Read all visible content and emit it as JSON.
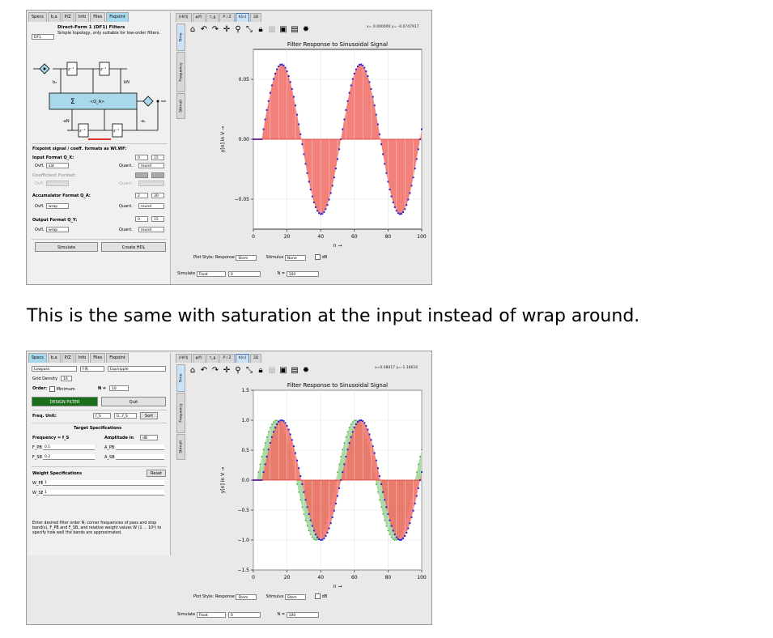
{
  "caption": "This is the same with saturation at the input instead of wrap around.",
  "shot1": {
    "left_tabs": [
      "Specs",
      "b,a",
      "P/Z",
      "Info",
      "Files",
      "Fixpoint"
    ],
    "active_left_tab": "Fixpoint",
    "filter_select": "DF1",
    "filter_title": "Direct-Form 1 (DF1) Filters",
    "filter_subtitle": "Simple topology, only suitable for low-order filters.",
    "diagram": {
      "sum_label": "Σ",
      "q_label": "<Q_A>",
      "z_label": "z⁻¹",
      "b0": "b₀",
      "bN": "bN",
      "aN": "-aN",
      "a1": "-a₁"
    },
    "section_title": "Fixpoint signal / coeff. formats as WI.WF:",
    "input_format": {
      "label": "Input Format Q_X:",
      "wi": "0",
      "wf": "15",
      "ovfl_label": "Ovfl.",
      "ovfl": "sat",
      "quant_label": "Quant.",
      "quant": "round"
    },
    "coeff_format": {
      "label": "Coefficient Format:",
      "ovfl_label": "Ovfl.",
      "quant_label": "Quant."
    },
    "accu_format": {
      "label": "Accumulator Format Q_A:",
      "wi": "2",
      "wf": "30",
      "ovfl_label": "Ovfl.",
      "ovfl": "wrap",
      "quant_label": "Quant.",
      "quant": "round"
    },
    "output_format": {
      "label": "Output Format Q_Y:",
      "wi": "0",
      "wf": "15",
      "ovfl_label": "Ovfl.",
      "ovfl": "wrap",
      "quant_label": "Quant.",
      "quant": "round"
    },
    "buttons": {
      "simulate": "Simulate",
      "create_hdl": "Create HDL"
    },
    "plot_tabs": [
      "|H(f)|",
      "φ(f)",
      "τ_g",
      "P / Z",
      "h[n]",
      "3D"
    ],
    "active_plot_tab": "h[n]",
    "vtabs": [
      "Time",
      "Frequency",
      "Stimuli"
    ],
    "toolbar_icons": [
      "home-icon",
      "undo-icon",
      "redo-icon",
      "pan-icon",
      "zoom-icon",
      "zoom-full-icon",
      "lock-icon",
      "grid-icon",
      "save-icon",
      "clipboard-icon",
      "settings-icon"
    ],
    "coords": "x= 0.000000   y= -0.0747917",
    "bottom_row": {
      "plot_style": "Plot Style: Response",
      "stem": "Stem",
      "stimulus": "Stimulus",
      "none": "None",
      "db": "dB"
    },
    "bottom_row2": {
      "simulate": "Simulate",
      "mode": "Float",
      "n0": "0",
      "n_label": "N =",
      "n": "100"
    },
    "chart_data": {
      "type": "line",
      "title": "Filter Response to Sinusoidal Signal",
      "xlabel": "n →",
      "ylabel": "y[n] in V →",
      "xlim": [
        0,
        100
      ],
      "ylim": [
        -0.075,
        0.075
      ],
      "xticks": [
        0,
        20,
        40,
        60,
        80,
        100
      ],
      "yticks": [
        0.05,
        0.0,
        -0.05
      ],
      "ytick_labels": [
        "0.05",
        "0.00",
        "−0.05"
      ],
      "series": [
        {
          "kind": "stem",
          "color": "#f26a63",
          "marker": "#2424d8",
          "period": 47,
          "amplitude": 0.0625,
          "start": 5
        }
      ]
    }
  },
  "shot2": {
    "left_tabs": [
      "Specs",
      "b,a",
      "P/Z",
      "Info",
      "Files",
      "Fixpoint"
    ],
    "active_left_tab": "Specs",
    "response_type": "Lowpass",
    "filter_type": "FIR",
    "design_method": "Equiripple",
    "grid_density_label": "Grid Density",
    "grid_density": "16",
    "order_label": "Order:",
    "order_min": "Minimum",
    "order_n_label": "N =",
    "order_n": "10",
    "design_button": "DESIGN FILTER",
    "quit_button": "Quit",
    "freq_unit_label": "Freq. Unit:",
    "freq_unit_a": "f_S",
    "freq_unit_b": "0...f_S",
    "sort_button": "Sort",
    "target_title": "Target Specifications",
    "frequency_label": "Frequency = f_S",
    "amplitude_label": "Amplitude in",
    "amplitude_unit": "dB",
    "f_pb_label": "F_PB",
    "f_pb": "0.1",
    "f_sb_label": "F_SB",
    "f_sb": "0.2",
    "a_pb_label": "A_PB",
    "a_sb_label": "A_SB",
    "weight_title": "Weight Specifications",
    "reset_button": "Reset",
    "w_pb_label": "W_PB",
    "w_pb": "1",
    "w_sb_label": "W_SB",
    "w_sb": "1",
    "note": "Enter desired filter order N, corner frequencies of pass and stop band(s), F_PB and F_SB, and relative weight values W (1 ... 10⁶) to specify how well the bands are approximated.",
    "plot_tabs": [
      "|H(f)|",
      "φ(f)",
      "τ_g",
      "P / Z",
      "h[n]",
      "3D"
    ],
    "active_plot_tab": "h[n]",
    "vtabs": [
      "Time",
      "Frequency",
      "Stimuli"
    ],
    "coords": "x=0.08017   y=-1.16616",
    "bottom_row": {
      "plot_style": "Plot Style: Response",
      "stem": "Stem",
      "stimulus": "Stimulus",
      "stim_style": "Stem",
      "db": "dB"
    },
    "bottom_row2": {
      "simulate": "Simulate",
      "mode": "Float",
      "n0": "0",
      "n_label": "N =",
      "n": "100"
    },
    "chart_data": {
      "type": "line",
      "title": "Filter Response to Sinusoidal Signal",
      "xlabel": "n →",
      "ylabel": "y[n] in V →",
      "xlim": [
        0,
        100
      ],
      "ylim": [
        -1.5,
        1.5
      ],
      "xticks": [
        0,
        20,
        40,
        60,
        80,
        100
      ],
      "yticks": [
        1.5,
        1.0,
        0.5,
        0.0,
        -0.5,
        -1.0,
        -1.5
      ],
      "ytick_labels": [
        "1.5",
        "1.0",
        "0.5",
        "0.0",
        "−0.5",
        "−1.0",
        "−1.5"
      ],
      "series": [
        {
          "kind": "stem-fill",
          "color": "#8fce86",
          "edge": "#2f9a2f",
          "period": 47,
          "amplitude": 1.0,
          "start": 2
        },
        {
          "kind": "stem",
          "color": "#f26a63",
          "marker": "#2424d8",
          "period": 47,
          "amplitude": 1.0,
          "start": 5
        }
      ]
    }
  }
}
